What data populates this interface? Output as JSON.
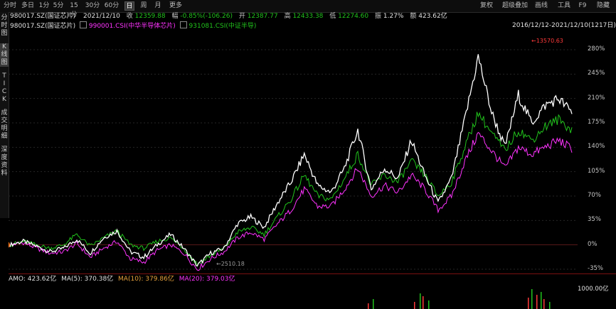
{
  "toolbar": {
    "tabs": [
      "分时",
      "多日",
      "1分",
      "5分",
      "15分",
      "30分",
      "60分",
      "日",
      "周",
      "月",
      "更多"
    ],
    "active_tab": "日",
    "right_tabs": [
      "复权",
      "超级叠加",
      "画线",
      "工具",
      "F9",
      "隐藏"
    ]
  },
  "sidebar": {
    "groups": [
      "分时图",
      "K线图",
      "TICK",
      "成交明细",
      "深度资料"
    ],
    "active_group": "K线图"
  },
  "quote": {
    "code": "980017.SZ(国证芯片)",
    "date": "2021/12/10",
    "close_label": "收",
    "close": "12359.88",
    "chg_label": "幅",
    "chg": "-0.85%(-106.26)",
    "open_label": "开",
    "open": "12387.77",
    "high_label": "高",
    "high": "12433.38",
    "low_label": "低",
    "low": "12274.60",
    "amp_label": "振",
    "amp": "1.27%",
    "amt_label": "额",
    "amt": "423.62亿"
  },
  "legend": {
    "s1": "980017.SZ(国证芯片)",
    "s2": "990001.CSI(中华半导体芯片)",
    "s3": "931081.CSI(中证半导)",
    "range": "2016/12/12-2021/12/10(1217日)"
  },
  "volume": {
    "amo": "AMO: 423.62亿",
    "ma5": "MA(5): 370.38亿",
    "ma10": "MA(10): 379.86亿",
    "ma20": "MA(20): 379.03亿",
    "ytick": "1000.00亿"
  },
  "colors": {
    "up": "#ff3a3a",
    "s1": "#ffffff",
    "s2": "#ff33ff",
    "s3": "#21c21c",
    "bg": "#000000"
  },
  "chart_data": {
    "type": "line",
    "title": "",
    "ylabel": "",
    "y_ticks": [
      "280%",
      "245%",
      "210%",
      "175%",
      "140%",
      "105%",
      "70%",
      "35%",
      "0%",
      "-35%"
    ],
    "ylim": [
      -35,
      280
    ],
    "annotations": {
      "max": "13570.63",
      "min": "2510.18"
    },
    "series": [
      {
        "name": "980017.SZ(国证芯片)",
        "values": [
          0,
          5,
          -2,
          -10,
          -5,
          8,
          -12,
          10,
          20,
          -10,
          -18,
          0,
          15,
          -5,
          -30,
          -12,
          -5,
          30,
          40,
          25,
          60,
          90,
          130,
          85,
          75,
          110,
          165,
          80,
          110,
          95,
          150,
          100,
          60,
          95,
          180,
          270,
          190,
          140,
          215,
          175,
          200,
          210,
          190
        ]
      },
      {
        "name": "990001.CSI(中华半导体芯片)",
        "values": [
          0,
          3,
          -5,
          -12,
          -10,
          2,
          -18,
          -5,
          5,
          -20,
          -25,
          -8,
          0,
          -12,
          -35,
          -20,
          -10,
          10,
          18,
          8,
          30,
          50,
          80,
          55,
          55,
          80,
          110,
          70,
          85,
          75,
          100,
          80,
          50,
          70,
          120,
          160,
          135,
          110,
          140,
          130,
          140,
          150,
          138
        ]
      },
      {
        "name": "931081.CSI(中证半导)",
        "values": [
          0,
          5,
          0,
          -5,
          0,
          15,
          -2,
          10,
          20,
          0,
          -5,
          5,
          10,
          -5,
          -28,
          -15,
          -5,
          18,
          25,
          15,
          40,
          65,
          100,
          70,
          65,
          95,
          130,
          85,
          100,
          90,
          120,
          100,
          70,
          90,
          140,
          190,
          160,
          135,
          165,
          150,
          170,
          180,
          165
        ]
      }
    ]
  }
}
